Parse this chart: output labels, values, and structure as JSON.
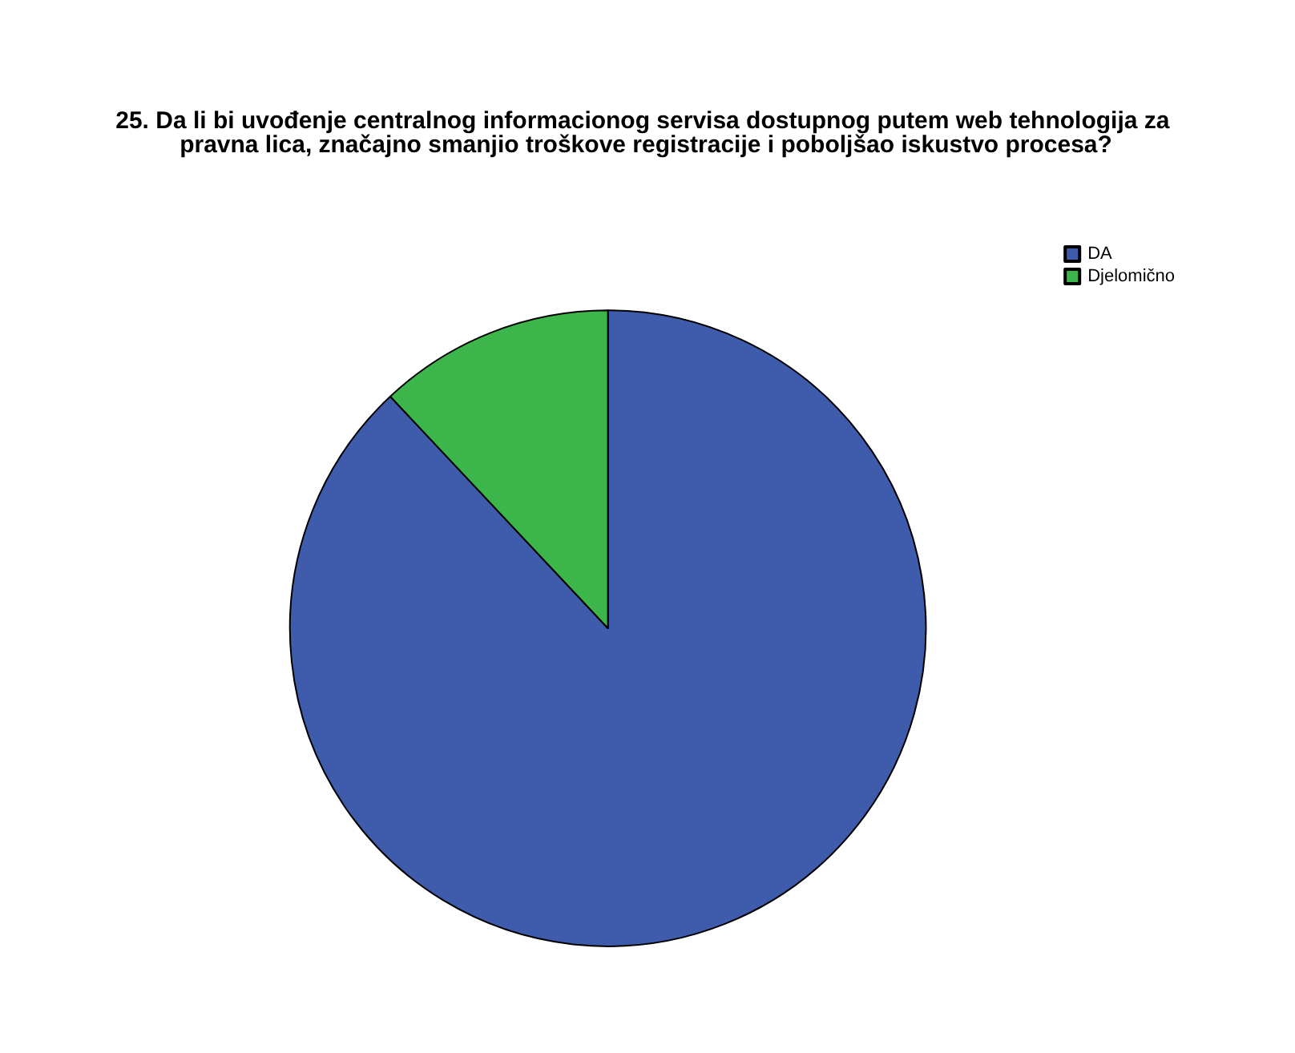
{
  "chart_data": {
    "type": "pie",
    "title": "25. Da li bi uvođenje centralnog informacionog servisa dostupnog putem web tehnologija za pravna lica, značajno smanjio troškove registracije i poboljšao iskustvo procesa?",
    "categories": [
      "DA",
      "Djelomično"
    ],
    "values": [
      88,
      12
    ],
    "colors": [
      "#3f5bab",
      "#3cb64a"
    ],
    "legend": "top right"
  }
}
